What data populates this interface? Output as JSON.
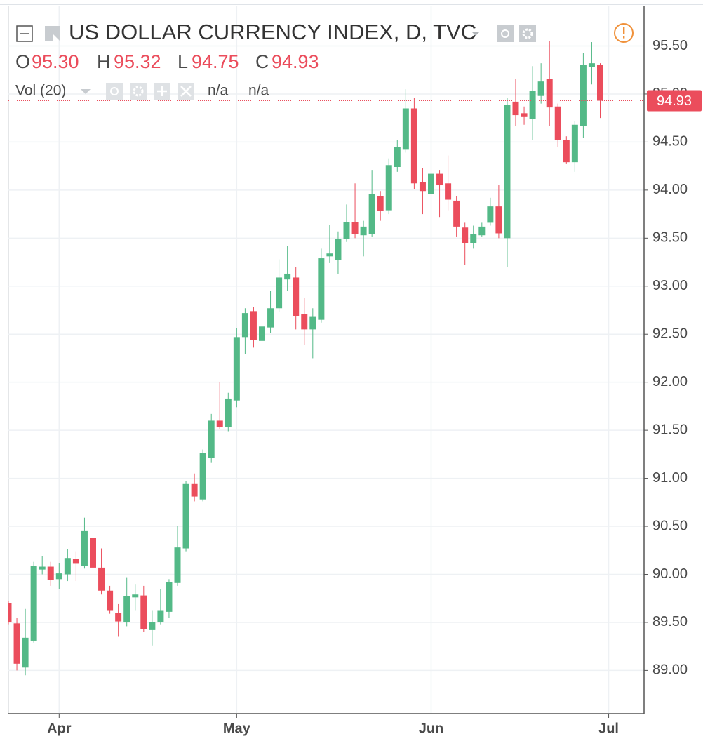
{
  "chart_data": {
    "type": "candlestick",
    "title": "US DOLLAR CURRENCY INDEX, D, TVC",
    "ohlc_legend": [
      {
        "label": "O",
        "value": "95.30"
      },
      {
        "label": "H",
        "value": "95.32"
      },
      {
        "label": "L",
        "value": "94.75"
      },
      {
        "label": "C",
        "value": "94.93"
      }
    ],
    "indicator": {
      "name": "Vol (20)",
      "values": [
        "n/a",
        "n/a"
      ]
    },
    "up_color": "#53b987",
    "down_color": "#eb4d5c",
    "categories": [
      null,
      null,
      null,
      null,
      null,
      null,
      "Apr",
      null,
      null,
      null,
      null,
      null,
      null,
      null,
      null,
      null,
      null,
      null,
      null,
      null,
      null,
      null,
      null,
      null,
      null,
      null,
      null,
      "May",
      null,
      null,
      null,
      null,
      null,
      null,
      null,
      null,
      null,
      null,
      null,
      null,
      null,
      null,
      null,
      null,
      null,
      null,
      null,
      null,
      null,
      null,
      "Jun",
      null,
      null,
      null,
      null,
      null,
      null,
      null,
      null,
      null,
      null,
      null,
      null,
      null,
      null,
      null,
      null,
      null,
      null,
      null,
      null,
      "Jul"
    ],
    "open": [
      89.7,
      89.49,
      89.03,
      89.31,
      90.05,
      90.08,
      89.95,
      90.0,
      90.16,
      90.09,
      90.38,
      90.07,
      89.83,
      89.6,
      89.5,
      89.76,
      89.78,
      89.42,
      89.5,
      89.61,
      89.91,
      90.27,
      90.94,
      90.78,
      91.21,
      91.6,
      91.53,
      91.81,
      92.47,
      92.74,
      92.43,
      92.57,
      92.77,
      93.07,
      93.09,
      92.71,
      92.55,
      92.65,
      93.31,
      93.27,
      93.49,
      93.67,
      93.53,
      93.54,
      93.94,
      93.79,
      94.24,
      94.42,
      94.85,
      94.08,
      93.96,
      94.17,
      94.07,
      93.89,
      93.61,
      93.45,
      93.53,
      93.66,
      93.83,
      93.5,
      94.92,
      94.8,
      94.74,
      94.98,
      95.16,
      94.87,
      94.52,
      94.29,
      94.67,
      95.28,
      95.3,
      null
    ],
    "high": [
      89.72,
      89.55,
      89.64,
      90.13,
      90.19,
      90.13,
      90.12,
      90.26,
      90.24,
      90.59,
      90.59,
      90.27,
      89.88,
      89.69,
      89.97,
      89.9,
      89.88,
      89.62,
      89.85,
      89.95,
      90.5,
      90.97,
      91.05,
      91.3,
      91.67,
      92.0,
      91.89,
      92.56,
      92.77,
      92.78,
      92.91,
      92.95,
      93.28,
      93.42,
      93.2,
      92.88,
      92.77,
      93.39,
      93.64,
      93.57,
      93.85,
      94.07,
      93.68,
      94.21,
      93.99,
      94.33,
      94.52,
      95.05,
      94.96,
      94.23,
      94.46,
      94.21,
      94.36,
      93.94,
      93.66,
      93.63,
      93.66,
      93.92,
      94.05,
      94.96,
      95.16,
      94.87,
      95.29,
      95.32,
      95.55,
      94.9,
      94.56,
      94.72,
      95.43,
      95.54,
      95.32,
      null
    ],
    "low": [
      89.48,
      89.0,
      88.95,
      89.29,
      90.0,
      89.88,
      89.85,
      89.93,
      89.93,
      90.06,
      90.02,
      89.79,
      89.59,
      89.35,
      89.46,
      89.62,
      89.4,
      89.26,
      89.48,
      89.55,
      89.88,
      90.24,
      90.76,
      90.76,
      91.16,
      91.51,
      91.49,
      91.74,
      92.29,
      92.36,
      92.4,
      92.51,
      92.73,
      92.95,
      92.55,
      92.39,
      92.25,
      92.62,
      93.24,
      93.13,
      93.46,
      93.5,
      93.31,
      93.51,
      93.68,
      93.75,
      94.19,
      94.39,
      94.01,
      93.75,
      93.88,
      93.72,
      93.79,
      93.51,
      93.22,
      93.39,
      93.51,
      93.63,
      93.5,
      93.2,
      94.67,
      94.68,
      94.52,
      94.9,
      94.67,
      94.45,
      94.27,
      94.19,
      94.54,
      95.1,
      94.75,
      null
    ],
    "close": [
      89.5,
      89.07,
      89.34,
      90.09,
      90.08,
      89.94,
      90.01,
      90.17,
      90.11,
      90.45,
      90.07,
      89.83,
      89.62,
      89.51,
      89.77,
      89.79,
      89.43,
      89.5,
      89.62,
      89.92,
      90.28,
      90.94,
      90.81,
      91.26,
      91.6,
      91.53,
      91.83,
      92.47,
      92.72,
      92.44,
      92.58,
      92.77,
      93.09,
      93.13,
      92.69,
      92.55,
      92.68,
      93.29,
      93.34,
      93.49,
      93.67,
      93.54,
      93.62,
      93.96,
      93.78,
      94.26,
      94.45,
      94.85,
      94.07,
      93.99,
      94.17,
      94.05,
      93.9,
      93.62,
      93.45,
      93.54,
      93.62,
      93.83,
      93.55,
      94.89,
      94.78,
      94.76,
      95.03,
      95.13,
      94.86,
      94.52,
      94.29,
      94.68,
      95.3,
      95.32,
      94.93,
      null
    ],
    "ylim": [
      88.55,
      95.92
    ],
    "yticks": [
      {
        "value": 89,
        "label": "89.00"
      },
      {
        "value": 89.5,
        "label": "89.50"
      },
      {
        "value": 90,
        "label": "90.00"
      },
      {
        "value": 90.5,
        "label": "90.50"
      },
      {
        "value": 91,
        "label": "91.00"
      },
      {
        "value": 91.5,
        "label": "91.50"
      },
      {
        "value": 92,
        "label": "92.00"
      },
      {
        "value": 92.5,
        "label": "92.50"
      },
      {
        "value": 93,
        "label": "93.00"
      },
      {
        "value": 93.5,
        "label": "93.50"
      },
      {
        "value": 94,
        "label": "94.00"
      },
      {
        "value": 94.5,
        "label": "94.50"
      },
      {
        "value": 95,
        "label": "95.00"
      },
      {
        "value": 95.5,
        "label": "95.50"
      }
    ],
    "last_price": {
      "value": 94.93,
      "label": "94.93"
    },
    "grid": true
  }
}
